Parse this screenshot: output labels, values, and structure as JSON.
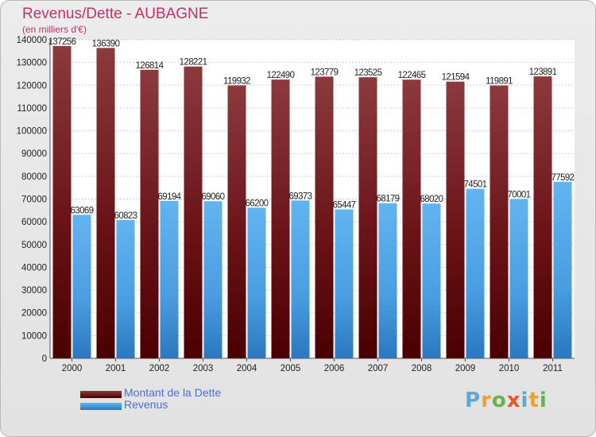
{
  "chart_data": {
    "type": "bar",
    "title": "Revenus/Dette - AUBAGNE",
    "subtitle": "(en milliers d'€)",
    "categories": [
      "2000",
      "2001",
      "2002",
      "2003",
      "2004",
      "2005",
      "2006",
      "2007",
      "2008",
      "2009",
      "2010",
      "2011"
    ],
    "series": [
      {
        "name": "Montant de la Dette",
        "color": "#7a1518",
        "values": [
          137256,
          136390,
          126814,
          128221,
          119932,
          122490,
          123779,
          123525,
          122465,
          121594,
          119891,
          123891
        ]
      },
      {
        "name": "Revenus",
        "color": "#4aa3e6",
        "values": [
          63069,
          60823,
          69194,
          69060,
          66200,
          69373,
          65447,
          68179,
          68020,
          74501,
          70001,
          77592
        ]
      }
    ],
    "ylim": [
      0,
      140000
    ],
    "ytick_step": 10000,
    "grid": true,
    "legend_position": "bottom-left"
  },
  "logo": {
    "letters": [
      "P",
      "r",
      "o",
      "x",
      "i",
      "t",
      "i"
    ],
    "colors": [
      "#5aa9d8",
      "#f0a030",
      "#6ab04c",
      "#e05a2a",
      "#5aa9d8",
      "#f0a030",
      "#6ab04c"
    ]
  }
}
